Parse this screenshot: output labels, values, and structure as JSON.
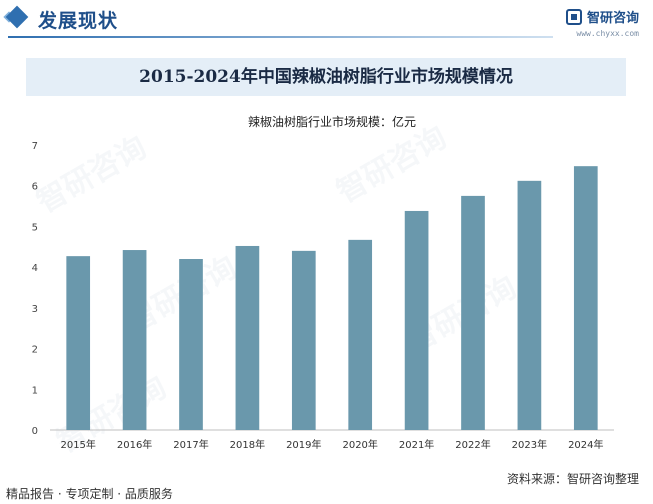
{
  "header": {
    "section_title": "发展现状",
    "brand_name": "智研咨询",
    "brand_url": "www.chyxx.com"
  },
  "chart_data": {
    "type": "bar",
    "title": "2015-2024年中国辣椒油树脂行业市场规模情况",
    "legend_label": "辣椒油树脂行业市场规模：亿元",
    "categories": [
      "2015年",
      "2016年",
      "2017年",
      "2018年",
      "2019年",
      "2020年",
      "2021年",
      "2022年",
      "2023年",
      "2024年"
    ],
    "values": [
      4.27,
      4.42,
      4.2,
      4.52,
      4.4,
      4.67,
      5.38,
      5.75,
      6.12,
      6.48
    ],
    "ylim": [
      0,
      7
    ],
    "yticks": [
      "0",
      "1",
      "2",
      "3",
      "4",
      "5",
      "6",
      "7"
    ],
    "bar_color": "#6a98ac",
    "grid": false
  },
  "footer": {
    "left": "精品报告 · 专项定制 · 品质服务",
    "right": "资料来源：智研咨询整理"
  },
  "colors": {
    "accent": "#1f4f8a",
    "band": "#e4eef7"
  }
}
